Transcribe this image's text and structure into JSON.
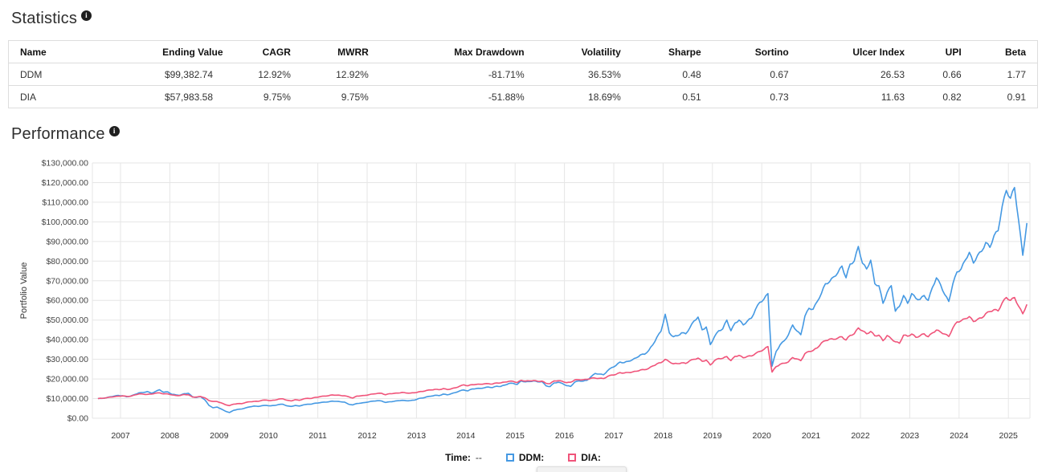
{
  "statistics": {
    "title": "Statistics",
    "columns": [
      "Name",
      "Ending Value",
      "CAGR",
      "MWRR",
      "Max Drawdown",
      "Volatility",
      "Sharpe",
      "Sortino",
      "Ulcer Index",
      "UPI",
      "Beta"
    ],
    "rows": [
      {
        "name": "DDM",
        "ending_value": "$99,382.74",
        "cagr": "12.92%",
        "mwrr": "12.92%",
        "max_drawdown": "-81.71%",
        "volatility": "36.53%",
        "sharpe": "0.48",
        "sortino": "0.67",
        "ulcer_index": "26.53",
        "upi": "0.66",
        "beta": "1.77"
      },
      {
        "name": "DIA",
        "ending_value": "$57,983.58",
        "cagr": "9.75%",
        "mwrr": "9.75%",
        "max_drawdown": "-51.88%",
        "volatility": "18.69%",
        "sharpe": "0.51",
        "sortino": "0.73",
        "ulcer_index": "11.63",
        "upi": "0.82",
        "beta": "0.91"
      }
    ]
  },
  "performance": {
    "title": "Performance"
  },
  "legend": {
    "time_label": "Time:",
    "time_value": "--",
    "items": [
      {
        "label": "DDM:",
        "color": "#4599E3"
      },
      {
        "label": "DIA:",
        "color": "#F0547A"
      }
    ]
  },
  "chart_data": {
    "type": "line",
    "title": "Performance",
    "xlabel": "",
    "ylabel": "Portfolio Value",
    "ylim": [
      0,
      130000
    ],
    "y_tick_step": 10000,
    "y_tick_labels": [
      "$0.00",
      "$10,000.00",
      "$20,000.00",
      "$30,000.00",
      "$40,000.00",
      "$50,000.00",
      "$60,000.00",
      "$70,000.00",
      "$80,000.00",
      "$90,000.00",
      "$100,000.00",
      "$110,000.00",
      "$120,000.00",
      "$130,000.00"
    ],
    "x_tick_labels": [
      "2007",
      "2008",
      "2009",
      "2010",
      "2011",
      "2012",
      "2013",
      "2014",
      "2015",
      "2016",
      "2017",
      "2018",
      "2019",
      "2020",
      "2021",
      "2022",
      "2023",
      "2024",
      "2025"
    ],
    "x_start_year": 2006.542,
    "x_step_years": 0.08333,
    "grid": true,
    "legend_position": "bottom",
    "series": [
      {
        "name": "DDM",
        "color": "#4599E3",
        "values": [
          10000,
          10100,
          10400,
          10900,
          11300,
          11600,
          11400,
          10900,
          11300,
          12100,
          12900,
          13100,
          13600,
          12700,
          13600,
          14500,
          13200,
          13400,
          12200,
          11900,
          11700,
          12500,
          12700,
          10900,
          10600,
          11000,
          9400,
          6600,
          5300,
          5700,
          4700,
          3600,
          2900,
          4000,
          4500,
          4700,
          5300,
          5800,
          6200,
          6000,
          6400,
          6500,
          6300,
          6500,
          7000,
          7100,
          6300,
          6000,
          6500,
          6200,
          6800,
          7100,
          7200,
          7700,
          7900,
          8200,
          8300,
          8700,
          8600,
          8400,
          8200,
          7100,
          6800,
          7500,
          7700,
          8000,
          8400,
          8700,
          8900,
          8800,
          8000,
          8400,
          8600,
          8900,
          9100,
          8900,
          9000,
          9200,
          10000,
          10300,
          10900,
          11200,
          11700,
          11500,
          12300,
          11900,
          12500,
          13100,
          13900,
          14400,
          13900,
          14900,
          15100,
          15200,
          15500,
          15900,
          15600,
          16300,
          16200,
          16900,
          17700,
          17800,
          17200,
          19000,
          18500,
          18700,
          19000,
          18500,
          18700,
          16500,
          16100,
          18000,
          18300,
          17700,
          16600,
          16200,
          18400,
          19000,
          18900,
          19300,
          21200,
          22800,
          22500,
          22100,
          24200,
          25800,
          26800,
          28600,
          28300,
          29000,
          29700,
          30800,
          32300,
          32600,
          34500,
          37400,
          41300,
          44300,
          53000,
          43500,
          41500,
          42000,
          43500,
          43000,
          46000,
          49500,
          51500,
          45000,
          46500,
          37500,
          41500,
          44500,
          45500,
          50000,
          44500,
          48500,
          50000,
          47500,
          49500,
          51000,
          55500,
          59000,
          60500,
          63500,
          26500,
          34000,
          37500,
          39500,
          42500,
          47500,
          44500,
          42500,
          52000,
          56000,
          55500,
          59500,
          63500,
          68500,
          69500,
          72000,
          74000,
          77500,
          71500,
          78500,
          80000,
          87500,
          79000,
          76000,
          80500,
          68500,
          67500,
          58500,
          64000,
          67500,
          54500,
          57000,
          62500,
          58500,
          63500,
          61000,
          60500,
          62500,
          60000,
          66500,
          71500,
          68000,
          63000,
          59500,
          68500,
          74500,
          76000,
          80500,
          84500,
          79000,
          83000,
          85000,
          89500,
          87000,
          93000,
          95500,
          108000,
          116000,
          112000,
          117500,
          100500,
          83000,
          99382.74
        ]
      },
      {
        "name": "DIA",
        "color": "#F0547A",
        "values": [
          10000,
          10150,
          10400,
          10750,
          10950,
          11200,
          11350,
          11100,
          11200,
          11850,
          12400,
          12250,
          12150,
          12250,
          12750,
          12900,
          12400,
          12400,
          11850,
          11550,
          11550,
          12100,
          11950,
          10800,
          10800,
          11050,
          10400,
          9000,
          8550,
          8500,
          7800,
          6900,
          6400,
          7150,
          7450,
          7400,
          8050,
          8400,
          8600,
          8600,
          9150,
          9250,
          8950,
          9200,
          9750,
          9900,
          9150,
          8800,
          9450,
          9100,
          9800,
          10150,
          10100,
          10650,
          10950,
          11300,
          11400,
          11900,
          11750,
          11600,
          11400,
          10900,
          10250,
          11300,
          11400,
          11600,
          12000,
          12350,
          12650,
          12700,
          11950,
          12500,
          12650,
          12800,
          13150,
          12850,
          12800,
          12950,
          13400,
          13600,
          14200,
          14400,
          14700,
          14500,
          15100,
          14600,
          15000,
          15500,
          16300,
          17000,
          16500,
          17100,
          17200,
          17300,
          17500,
          17600,
          17400,
          18000,
          18000,
          18400,
          18800,
          18800,
          18200,
          19300,
          18900,
          19000,
          19200,
          18800,
          18900,
          17800,
          17600,
          19000,
          19100,
          18800,
          18100,
          18300,
          19500,
          19600,
          19600,
          19800,
          20400,
          20400,
          20300,
          20200,
          21300,
          22000,
          22300,
          23200,
          23000,
          23300,
          23500,
          23900,
          24600,
          24700,
          25400,
          26600,
          27700,
          28300,
          30000,
          28800,
          27700,
          27800,
          28200,
          27900,
          29300,
          30000,
          30600,
          29000,
          29600,
          27100,
          29300,
          30400,
          30500,
          31400,
          29300,
          31500,
          32000,
          30800,
          31500,
          31700,
          33000,
          34000,
          35000,
          36500,
          23500,
          26300,
          27500,
          28000,
          28700,
          30900,
          30200,
          29300,
          32900,
          34000,
          34500,
          35800,
          38300,
          39500,
          40300,
          40200,
          40800,
          41500,
          39800,
          42200,
          43000,
          46000,
          44500,
          43000,
          44200,
          42000,
          42300,
          39500,
          42100,
          40500,
          38900,
          38200,
          42300,
          41800,
          42900,
          41200,
          42000,
          43000,
          41500,
          43400,
          44900,
          43900,
          42900,
          41600,
          46000,
          49000,
          49600,
          50700,
          51800,
          49200,
          50400,
          51000,
          53300,
          54300,
          55300,
          54600,
          58800,
          61500,
          60000,
          61500,
          57000,
          53200,
          57983.58
        ]
      }
    ]
  }
}
